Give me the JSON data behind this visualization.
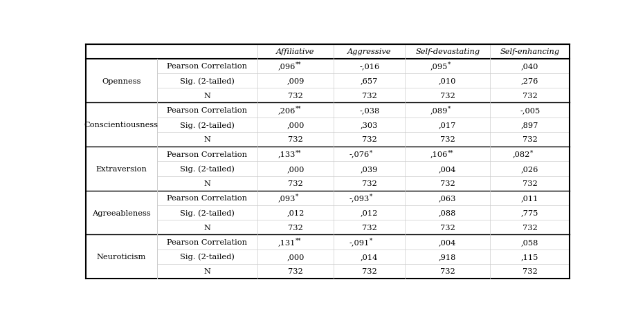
{
  "col_headers": [
    "Affiliative",
    "Aggressive",
    "Self-devastating",
    "Self-enhancing"
  ],
  "row_groups": [
    {
      "label": "Openness",
      "rows": [
        [
          "Pearson Correlation",
          ",096**",
          "-,016",
          ",095*",
          ",040"
        ],
        [
          "Sig. (2-tailed)",
          ",009",
          ",657",
          ",010",
          ",276"
        ],
        [
          "N",
          "732",
          "732",
          "732",
          "732"
        ]
      ]
    },
    {
      "label": "Conscientiousness",
      "rows": [
        [
          "Pearson Correlation",
          ",206**",
          "-,038",
          ",089*",
          "-,005"
        ],
        [
          "Sig. (2-tailed)",
          ",000",
          ",303",
          ",017",
          ",897"
        ],
        [
          "N",
          "732",
          "732",
          "732",
          "732"
        ]
      ]
    },
    {
      "label": "Extraversion",
      "rows": [
        [
          "Pearson Correlation",
          ",133**",
          "-,076*",
          ",106**",
          ",082*"
        ],
        [
          "Sig. (2-tailed)",
          ",000",
          ",039",
          ",004",
          ",026"
        ],
        [
          "N",
          "732",
          "732",
          "732",
          "732"
        ]
      ]
    },
    {
      "label": "Agreeableness",
      "rows": [
        [
          "Pearson Correlation",
          ",093*",
          "-,093*",
          ",063",
          ",011"
        ],
        [
          "Sig. (2-tailed)",
          ",012",
          ",012",
          ",088",
          ",775"
        ],
        [
          "N",
          "732",
          "732",
          "732",
          "732"
        ]
      ]
    },
    {
      "label": "Neuroticism",
      "rows": [
        [
          "Pearson Correlation",
          ",131**",
          "-,091*",
          ",004",
          ",058"
        ],
        [
          "Sig. (2-tailed)",
          ",000",
          ",014",
          ",918",
          ",115"
        ],
        [
          "N",
          "732",
          "732",
          "732",
          "732"
        ]
      ]
    }
  ],
  "superscripts": {
    ",096**": [
      ",096",
      "**"
    ],
    ",206**": [
      ",206",
      "**"
    ],
    ",095*": [
      ",095",
      "*"
    ],
    ",089*": [
      ",089",
      "*"
    ],
    ",133**": [
      ",133",
      "**"
    ],
    "-,076*": [
      "-,076",
      "*"
    ],
    ",106**": [
      ",106",
      "**"
    ],
    ",082*": [
      ",082",
      "*"
    ],
    ",093*": [
      ",093",
      "*"
    ],
    "-,093*": [
      "-,093",
      "*"
    ],
    ",131**": [
      ",131",
      "**"
    ],
    "-,091*": [
      "-,091",
      "*"
    ]
  },
  "background_color": "#ffffff",
  "text_color": "#000000",
  "thick_line_color": "#000000",
  "thin_line_color": "#cccccc",
  "font_size": 8.2,
  "header_font_size": 8.2,
  "label_font_size": 8.2
}
